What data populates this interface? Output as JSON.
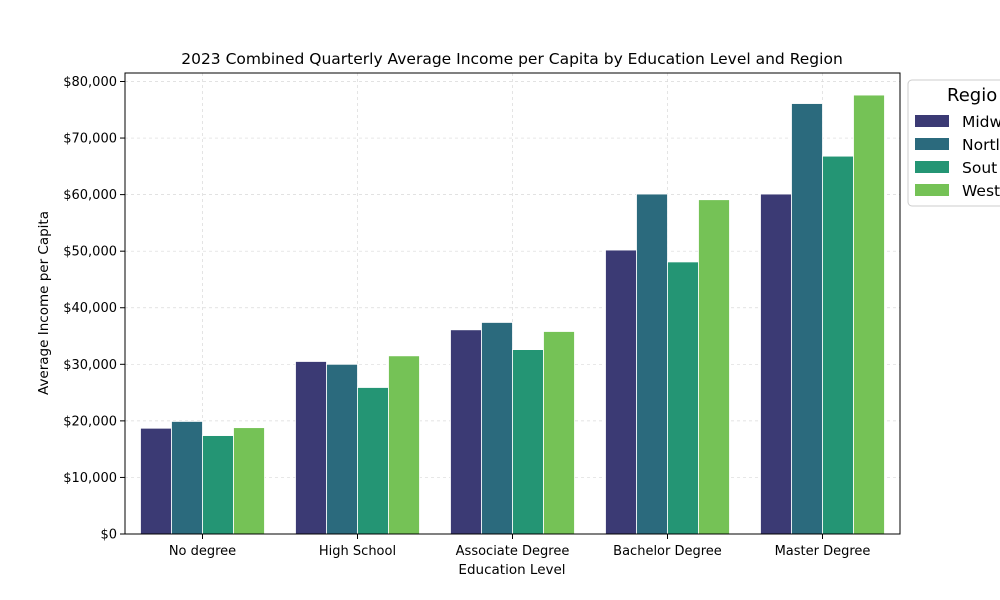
{
  "chart_data": {
    "type": "bar",
    "title": "2023 Combined Quarterly Average Income per Capita by Education Level and Region",
    "xlabel": "Education Level",
    "ylabel": "Average Income per Capita",
    "ylim": [
      0,
      81500
    ],
    "yticks": [
      0,
      10000,
      20000,
      30000,
      40000,
      50000,
      60000,
      70000,
      80000
    ],
    "ytick_labels": [
      "$0",
      "$10,000",
      "$20,000",
      "$30,000",
      "$40,000",
      "$50,000",
      "$60,000",
      "$70,000",
      "$80,000"
    ],
    "grid": true,
    "legend_placement": "outside-top-right",
    "legend_title": "Regio",
    "categories": [
      "No degree",
      "High School",
      "Associate Degree",
      "Bachelor Degree",
      "Master Degree"
    ],
    "series": [
      {
        "name": "Midw",
        "color": "#3b3a74",
        "values": [
          18700,
          30500,
          36100,
          50200,
          60100
        ]
      },
      {
        "name": "Nortl",
        "color": "#2b6a7d",
        "values": [
          19900,
          30000,
          37400,
          60100,
          76100
        ]
      },
      {
        "name": "Sout",
        "color": "#249574",
        "values": [
          17400,
          25900,
          32600,
          48100,
          66800
        ]
      },
      {
        "name": "West",
        "color": "#75c256",
        "values": [
          18800,
          31500,
          35800,
          59100,
          77600
        ]
      }
    ]
  }
}
